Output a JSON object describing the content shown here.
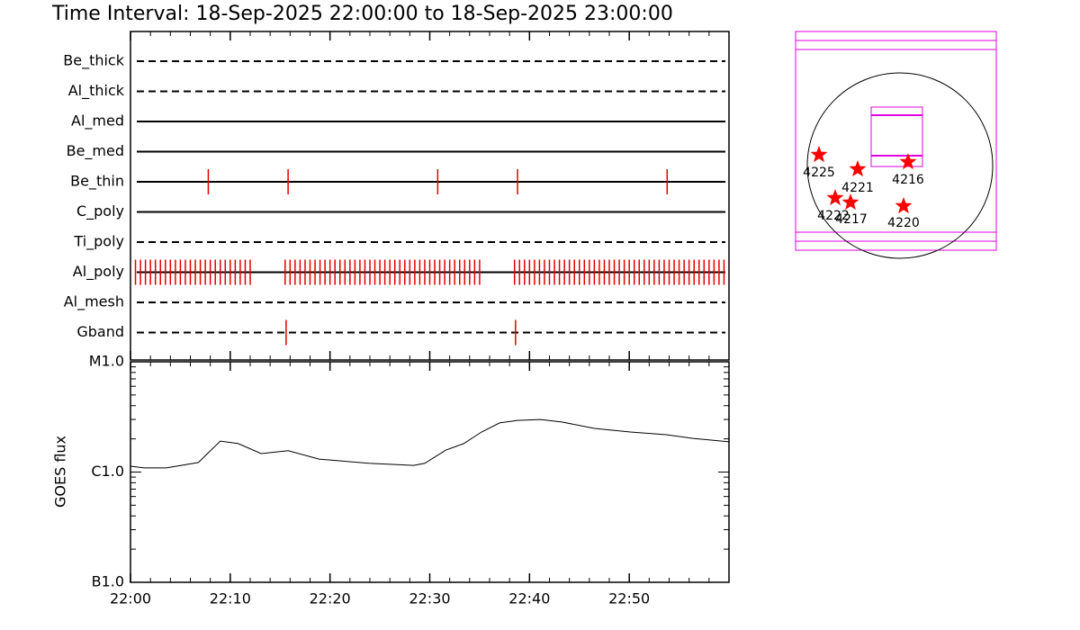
{
  "chart_data": [
    {
      "type": "timeline",
      "title": "Time Interval: 18-Sep-2025 22:00:00 to 18-Sep-2025 23:00:00",
      "color": "#e00000",
      "xlim": [
        0,
        60
      ],
      "series": [
        {
          "name": "Be_thick",
          "style": "dashed",
          "events": []
        },
        {
          "name": "Al_thick",
          "style": "dashed",
          "events": []
        },
        {
          "name": "Al_med",
          "style": "solid",
          "events": []
        },
        {
          "name": "Be_med",
          "style": "solid",
          "events": []
        },
        {
          "name": "Be_thin",
          "style": "solid",
          "events": [
            7.8,
            15.8,
            30.8,
            38.8,
            53.8
          ]
        },
        {
          "name": "C_poly",
          "style": "solid",
          "events": []
        },
        {
          "name": "Ti_poly",
          "style": "dashed",
          "events": []
        },
        {
          "name": "Al_poly",
          "style": "solid",
          "events": [
            0.5,
            1,
            1.5,
            2,
            2.5,
            3,
            3.5,
            4,
            4.5,
            5,
            5.5,
            6,
            6.5,
            7,
            7.5,
            8,
            8.5,
            9,
            9.5,
            10,
            10.5,
            11,
            11.5,
            12,
            15.5,
            16,
            16.5,
            17,
            17.5,
            18,
            18.5,
            19,
            19.5,
            20,
            20.5,
            21,
            21.5,
            22,
            22.5,
            23,
            23.5,
            24,
            24.5,
            25,
            25.5,
            26,
            26.5,
            27,
            27.5,
            28,
            28.5,
            29,
            29.5,
            30,
            30.5,
            31,
            31.5,
            32,
            32.5,
            33,
            33.5,
            34,
            34.5,
            35,
            38.5,
            39,
            39.5,
            40,
            40.5,
            41,
            41.5,
            42,
            42.5,
            43,
            43.5,
            44,
            44.5,
            45,
            45.5,
            46,
            46.5,
            47,
            47.5,
            48,
            48.5,
            49,
            49.5,
            50,
            50.5,
            51,
            51.5,
            52,
            52.5,
            53,
            53.5,
            54,
            54.5,
            55,
            55.5,
            56,
            56.5,
            57,
            57.5,
            58,
            58.5,
            59,
            59.5
          ]
        },
        {
          "name": "Al_mesh",
          "style": "dashed",
          "events": []
        },
        {
          "name": "Gband",
          "style": "dashed",
          "events": [
            15.6,
            38.6
          ]
        }
      ]
    },
    {
      "type": "line",
      "y_label": "GOES flux",
      "log_y": true,
      "color": "#000000",
      "x": [
        0,
        1.35,
        3.6,
        6.8,
        9.0,
        10.8,
        13.1,
        15.8,
        18.9,
        23.9,
        28.4,
        29.5,
        31.6,
        33.4,
        35.2,
        37.0,
        38.8,
        41.1,
        43.3,
        46.5,
        50.1,
        53.7,
        56.4,
        60
      ],
      "values": [
        1.13e-06,
        1.09e-06,
        1.09e-06,
        1.22e-06,
        1.91e-06,
        1.81e-06,
        1.47e-06,
        1.56e-06,
        1.31e-06,
        1.2e-06,
        1.15e-06,
        1.2e-06,
        1.58e-06,
        1.81e-06,
        2.31e-06,
        2.79e-06,
        2.94e-06,
        3e-06,
        2.84e-06,
        2.49e-06,
        2.31e-06,
        2.18e-06,
        2.02e-06,
        1.88e-06
      ],
      "xlim": [
        0,
        60
      ],
      "xticks": [
        {
          "value": 0,
          "label": "22:00"
        },
        {
          "value": 10,
          "label": "22:10"
        },
        {
          "value": 20,
          "label": "22:20"
        },
        {
          "value": 30,
          "label": "22:30"
        },
        {
          "value": 40,
          "label": "22:40"
        },
        {
          "value": 50,
          "label": "22:50"
        }
      ],
      "ylim": [
        1e-07,
        1e-05
      ],
      "yticks": [
        {
          "value": 1e-05,
          "label": "M1.0"
        },
        {
          "value": 1e-06,
          "label": "C1.0"
        },
        {
          "value": 1e-07,
          "label": "B1.0"
        }
      ]
    }
  ],
  "map": {
    "regions": [
      "4225",
      "4221",
      "4216",
      "4222",
      "4217",
      "4220"
    ]
  }
}
